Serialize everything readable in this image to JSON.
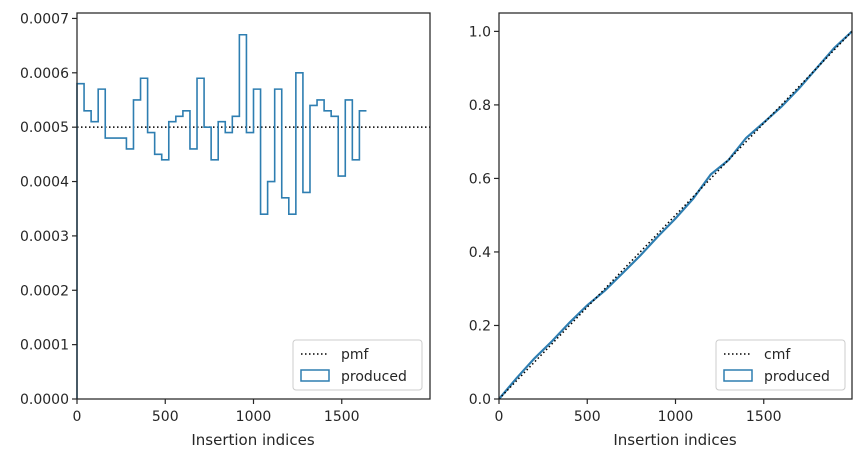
{
  "chart_data": [
    {
      "type": "step",
      "xlabel": "Insertion indices",
      "ylabel": "",
      "xlim": [
        0,
        2000
      ],
      "ylim": [
        0,
        0.00071
      ],
      "xticks": [
        0,
        500,
        1000,
        1500
      ],
      "xtick_labels": [
        "0",
        "500",
        "1000",
        "1500"
      ],
      "yticks": [
        0,
        0.0001,
        0.0002,
        0.0003,
        0.0004,
        0.0005,
        0.0006,
        0.0007
      ],
      "ytick_labels": [
        "0.0000",
        "0.0001",
        "0.0002",
        "0.0003",
        "0.0004",
        "0.0005",
        "0.0006",
        "0.0007"
      ],
      "grid": false,
      "legend_position": "bottom-right",
      "reference": {
        "name": "pmf",
        "value": 0.0005,
        "color": "#000000",
        "style": "dotted"
      },
      "series": [
        {
          "name": "produced",
          "color": "#2e7eb1",
          "bin_width": 40,
          "values": [
            0.00058,
            0.00053,
            0.00051,
            0.00057,
            0.00048,
            0.00048,
            0.00048,
            0.00046,
            0.00055,
            0.00059,
            0.00049,
            0.00045,
            0.00044,
            0.00051,
            0.00052,
            0.00053,
            0.00046,
            0.00059,
            0.0005,
            0.00044,
            0.00051,
            0.00049,
            0.00052,
            0.00067,
            0.00049,
            0.00057,
            0.00034,
            0.0004,
            0.00057,
            0.00037,
            0.00034,
            0.0006,
            0.00038,
            0.00054,
            0.00055,
            0.00053,
            0.00052,
            0.00041,
            0.00055,
            0.00044,
            0.00053
          ]
        }
      ]
    },
    {
      "type": "line",
      "xlabel": "Insertion indices",
      "ylabel": "",
      "xlim": [
        0,
        2000
      ],
      "ylim": [
        0,
        1.05
      ],
      "xticks": [
        0,
        500,
        1000,
        1500
      ],
      "xtick_labels": [
        "0",
        "500",
        "1000",
        "1500"
      ],
      "yticks": [
        0,
        0.2,
        0.4,
        0.6,
        0.8,
        1.0
      ],
      "ytick_labels": [
        "0.0",
        "0.2",
        "0.4",
        "0.6",
        "0.8",
        "1.0"
      ],
      "grid": false,
      "legend_position": "bottom-right",
      "reference": {
        "name": "cmf",
        "color": "#000000",
        "style": "dotted",
        "x": [
          0,
          2000
        ],
        "y": [
          0,
          1.0
        ]
      },
      "series": [
        {
          "name": "produced",
          "color": "#2e7eb1",
          "x": [
            0,
            100,
            200,
            300,
            400,
            500,
            600,
            700,
            800,
            900,
            1000,
            1100,
            1200,
            1300,
            1400,
            1500,
            1600,
            1700,
            1800,
            1900,
            2000
          ],
          "y": [
            0,
            0.057,
            0.11,
            0.157,
            0.208,
            0.255,
            0.295,
            0.342,
            0.39,
            0.442,
            0.491,
            0.545,
            0.611,
            0.65,
            0.71,
            0.752,
            0.795,
            0.845,
            0.9,
            0.955,
            1.0
          ]
        }
      ]
    }
  ]
}
